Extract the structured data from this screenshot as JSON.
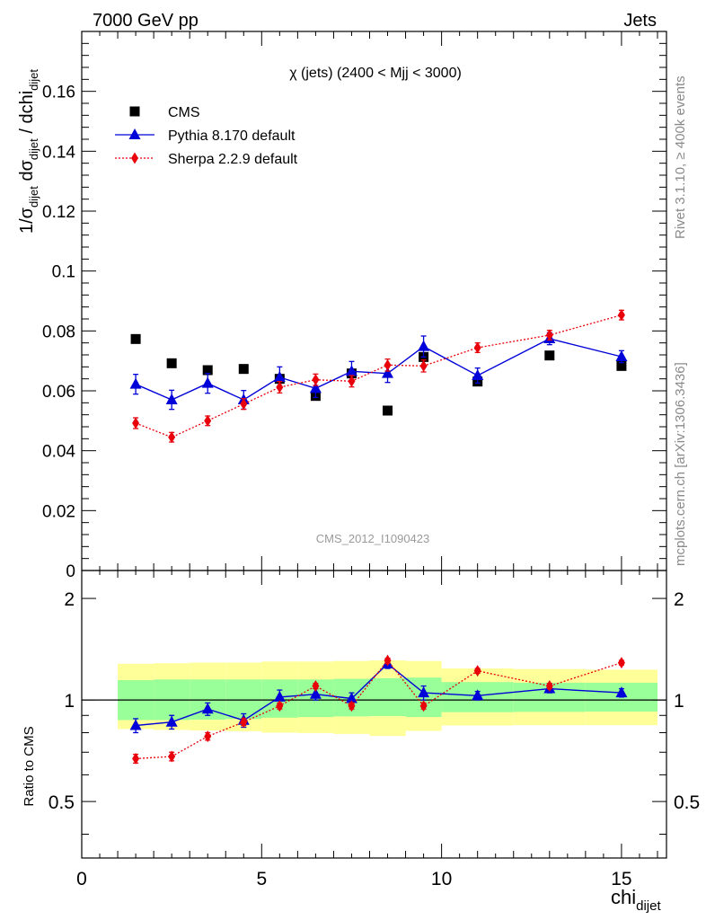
{
  "header": {
    "left_title": "7000 GeV pp",
    "right_title": "Jets"
  },
  "side_labels": {
    "rivet": "Rivet 3.1.10, ≥ 400k events",
    "mcplots": "mcplots.cern.ch [arXiv:1306.3436]"
  },
  "colors": {
    "cms": "#000000",
    "pythia": "#0000d8",
    "sherpa": "#e8000b",
    "band_inner": "#99ff99",
    "band_outer": "#ffff99"
  },
  "chart_data": [
    {
      "type": "scatter",
      "title": "χ (jets) (2400 < Mjj < 3000)",
      "watermark": "CMS_2012_I1090423",
      "ylabel": "1/σ_dijet dσ_dijet / dchi_dijet",
      "xlim": [
        0,
        16.25
      ],
      "ylim": [
        0,
        0.18
      ],
      "yticks": [
        "0",
        "0.02",
        "0.04",
        "0.06",
        "0.08",
        "0.1",
        "0.12",
        "0.14",
        "0.16"
      ],
      "legend_position": "top-left",
      "x": [
        1.5,
        2.5,
        3.5,
        4.5,
        5.5,
        6.5,
        7.5,
        8.5,
        9.5,
        11,
        13,
        15
      ],
      "series": [
        {
          "name": "CMS",
          "marker": "square",
          "values": [
            0.0773,
            0.0692,
            0.0669,
            0.0673,
            0.064,
            0.0583,
            0.0658,
            0.0534,
            0.0713,
            0.0631,
            0.0718,
            0.0683
          ]
        },
        {
          "name": "Pythia 8.170 default",
          "marker": "triangle",
          "values": [
            0.0622,
            0.057,
            0.0625,
            0.057,
            0.0645,
            0.0608,
            0.0665,
            0.0658,
            0.0748,
            0.0651,
            0.0774,
            0.0714
          ],
          "errors": [
            0.0033,
            0.0032,
            0.0033,
            0.0031,
            0.0035,
            0.003,
            0.0033,
            0.003,
            0.0035,
            0.0025,
            0.002,
            0.002
          ]
        },
        {
          "name": "Sherpa 2.2.9 default",
          "marker": "diamond",
          "values": [
            0.0492,
            0.0445,
            0.05,
            0.0556,
            0.0612,
            0.0637,
            0.0632,
            0.0686,
            0.0683,
            0.0744,
            0.0786,
            0.0853
          ],
          "errors": [
            0.0018,
            0.0016,
            0.0016,
            0.0018,
            0.0019,
            0.0019,
            0.0019,
            0.002,
            0.002,
            0.0016,
            0.0016,
            0.0016
          ]
        }
      ]
    },
    {
      "type": "scatter",
      "ylabel": "Ratio to CMS",
      "xlabel": "chi_dijet",
      "xlim": [
        0,
        16.25
      ],
      "ylim": [
        0.34,
        2.42
      ],
      "log_y": true,
      "xticks": [
        "0",
        "5",
        "10",
        "15"
      ],
      "yticks": [
        "0.5",
        "1",
        "2"
      ],
      "reference_line": 1,
      "bands": {
        "bin_edges": [
          1,
          2,
          3,
          4,
          5,
          6,
          7,
          8,
          9,
          10,
          12,
          14,
          16
        ],
        "inner_low": [
          0.872,
          0.872,
          0.874,
          0.878,
          0.886,
          0.89,
          0.894,
          0.896,
          0.89,
          0.92,
          0.922,
          0.924
        ],
        "inner_high": [
          1.145,
          1.15,
          1.15,
          1.15,
          1.15,
          1.15,
          1.155,
          1.16,
          1.165,
          1.13,
          1.125,
          1.125
        ],
        "outer_low": [
          0.82,
          0.815,
          0.812,
          0.808,
          0.8,
          0.798,
          0.793,
          0.782,
          0.81,
          0.84,
          0.842,
          0.842
        ],
        "outer_high": [
          1.28,
          1.285,
          1.29,
          1.29,
          1.3,
          1.3,
          1.305,
          1.31,
          1.305,
          1.24,
          1.235,
          1.23
        ]
      },
      "x": [
        1.5,
        2.5,
        3.5,
        4.5,
        5.5,
        6.5,
        7.5,
        8.5,
        9.5,
        11,
        13,
        15
      ],
      "series": [
        {
          "name": "Pythia 8.170 default",
          "marker": "triangle",
          "values": [
            0.84,
            0.86,
            0.94,
            0.87,
            1.02,
            1.04,
            1.01,
            1.28,
            1.05,
            1.03,
            1.08,
            1.05
          ],
          "errors": [
            0.04,
            0.04,
            0.04,
            0.04,
            0.05,
            0.04,
            0.04,
            0.04,
            0.05,
            0.03,
            0.03,
            0.03
          ]
        },
        {
          "name": "Sherpa 2.2.9 default",
          "marker": "diamond",
          "values": [
            0.67,
            0.68,
            0.78,
            0.86,
            0.96,
            1.1,
            0.96,
            1.31,
            0.96,
            1.22,
            1.1,
            1.29
          ],
          "errors": [
            0.02,
            0.02,
            0.02,
            0.02,
            0.02,
            0.02,
            0.02,
            0.02,
            0.02,
            0.02,
            0.02,
            0.02
          ]
        }
      ]
    }
  ]
}
